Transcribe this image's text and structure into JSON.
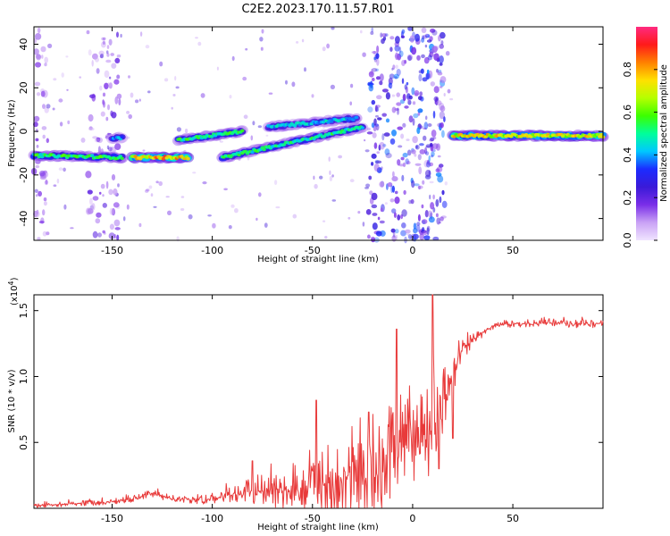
{
  "title": "C2E2.2023.170.11.57.R01",
  "colors": {
    "snr_line": "#e83a3a",
    "axis": "#000000",
    "colorbar_stops": [
      "#f0e4ff",
      "#c9a2f5",
      "#7a2ee8",
      "#3a1ad8",
      "#1b2cff",
      "#00c8ff",
      "#00ff9a",
      "#3cff00",
      "#b6ff00",
      "#ffe000",
      "#ff8000",
      "#ff1a1a",
      "#ff2a80"
    ]
  },
  "chart_data": [
    {
      "type": "heatmap",
      "xlabel": "Height of straight line (km)",
      "ylabel": "Frequency (Hz)",
      "xlim": [
        -189,
        95
      ],
      "ylim": [
        -50,
        48
      ],
      "xticks": [
        "-150",
        "-100",
        "-50",
        "0",
        "50"
      ],
      "xtick_values": [
        -150,
        -100,
        -50,
        0,
        50
      ],
      "yticks": [
        "-40",
        "-20",
        "0",
        "20",
        "40"
      ],
      "ytick_values": [
        -40,
        -20,
        0,
        20,
        40
      ],
      "colorbar": {
        "label": "Normalized spectral amplitude",
        "ticks": [
          "0.0",
          "0.2",
          "0.4",
          "0.6",
          "0.8"
        ],
        "tick_values": [
          0.0,
          0.2,
          0.4,
          0.6,
          0.8
        ],
        "range": [
          0.0,
          1.0
        ]
      },
      "noise_bands": [
        {
          "x_from": -189,
          "x_to": -182,
          "level": 0.25
        },
        {
          "x_from": -162,
          "x_to": -146,
          "level": 0.3
        },
        {
          "x_from": -22,
          "x_to": 16,
          "level": 0.55
        }
      ],
      "ridges": [
        {
          "x_from": -189,
          "x_to": -145,
          "f_from": -11,
          "f_to": -12,
          "level": 0.62
        },
        {
          "x_from": -150,
          "x_to": -145,
          "f_from": -3,
          "f_to": -3,
          "level": 0.45
        },
        {
          "x_from": -140,
          "x_to": -112,
          "f_from": -12,
          "f_to": -12,
          "level": 0.9
        },
        {
          "x_from": -117,
          "x_to": -85,
          "f_from": -4,
          "f_to": 0,
          "level": 0.6
        },
        {
          "x_from": -95,
          "x_to": -25,
          "f_from": -12,
          "f_to": 2,
          "level": 0.58
        },
        {
          "x_from": -72,
          "x_to": -28,
          "f_from": 2,
          "f_to": 6,
          "level": 0.5
        },
        {
          "x_from": 20,
          "x_to": 95,
          "f_from": -2,
          "f_to": -2,
          "level": 0.82
        }
      ]
    },
    {
      "type": "line",
      "xlabel": "Height of straight line (km)",
      "ylabel": "SNR (10 * v/v)",
      "y_multiplier": "(x10",
      "y_multiplier_exponent": "4",
      "y_multiplier_close": ")",
      "xlim": [
        -189,
        95
      ],
      "ylim": [
        0,
        16200
      ],
      "xticks": [
        "-150",
        "-100",
        "-50",
        "0",
        "50"
      ],
      "xtick_values": [
        -150,
        -100,
        -50,
        0,
        50
      ],
      "yticks": [
        "0.5",
        "1.0",
        "1.5"
      ],
      "ytick_values": [
        5000,
        10000,
        15000
      ],
      "envelope": {
        "x": [
          -189,
          -170,
          -150,
          -140,
          -130,
          -120,
          -105,
          -95,
          -80,
          -70,
          -60,
          -50,
          -40,
          -30,
          -20,
          -10,
          0,
          10,
          15,
          20,
          25,
          30,
          35,
          40,
          50,
          60,
          70,
          80,
          95
        ],
        "baseline": [
          200,
          350,
          500,
          700,
          1100,
          700,
          600,
          900,
          1300,
          1300,
          1300,
          1400,
          1200,
          1800,
          2200,
          4300,
          5000,
          6000,
          7800,
          10000,
          12000,
          12800,
          13300,
          13800,
          14000,
          14000,
          14100,
          14000,
          14000
        ],
        "spread": [
          150,
          200,
          200,
          250,
          300,
          250,
          300,
          600,
          1000,
          1200,
          1600,
          2200,
          2700,
          3000,
          3300,
          3600,
          3600,
          3400,
          2400,
          1300,
          800,
          450,
          350,
          250,
          250,
          250,
          250,
          300,
          300
        ]
      },
      "spikes": [
        {
          "x": -80,
          "y": 3600
        },
        {
          "x": -48,
          "y": 8200
        },
        {
          "x": -22,
          "y": 7300
        },
        {
          "x": -8,
          "y": 13600
        },
        {
          "x": 10,
          "y": 16200
        },
        {
          "x": 13,
          "y": 3000
        },
        {
          "x": 20,
          "y": 5300
        }
      ]
    }
  ]
}
